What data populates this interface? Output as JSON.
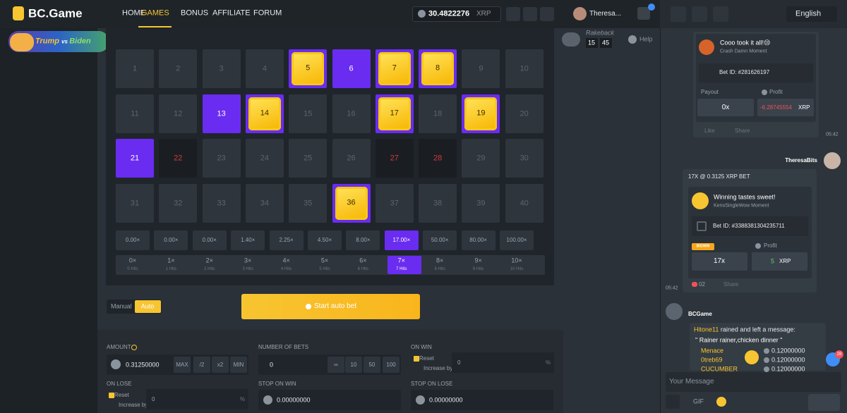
{
  "nav": {
    "logo": "BC.Game",
    "items": [
      "HOME",
      "GAMES",
      "BONUS",
      "AFFILIATE",
      "FORUM"
    ],
    "active": 1,
    "balance": "30.4822276",
    "currency": "XRP",
    "user": "Theresa..."
  },
  "promo": {
    "a": "Trump",
    "vs": "vs",
    "b": "Biden"
  },
  "rakeback": {
    "label": "Rakeback",
    "left": "15",
    "right": "45",
    "help": "Help"
  },
  "keno": {
    "tiles": [
      {
        "label": "1",
        "state": "idle"
      },
      {
        "label": "2",
        "state": "idle"
      },
      {
        "label": "3",
        "state": "idle"
      },
      {
        "label": "4",
        "state": "idle"
      },
      {
        "label": "5",
        "state": "gem"
      },
      {
        "label": "6",
        "state": "picked"
      },
      {
        "label": "7",
        "state": "gem"
      },
      {
        "label": "8",
        "state": "gem"
      },
      {
        "label": "9",
        "state": "idle"
      },
      {
        "label": "10",
        "state": "idle"
      },
      {
        "label": "11",
        "state": "idle"
      },
      {
        "label": "12",
        "state": "idle"
      },
      {
        "label": "13",
        "state": "picked"
      },
      {
        "label": "14",
        "state": "gem"
      },
      {
        "label": "15",
        "state": "idle"
      },
      {
        "label": "16",
        "state": "idle"
      },
      {
        "label": "17",
        "state": "gem"
      },
      {
        "label": "18",
        "state": "idle"
      },
      {
        "label": "19",
        "state": "gem"
      },
      {
        "label": "20",
        "state": "idle"
      },
      {
        "label": "21",
        "state": "picked"
      },
      {
        "label": "22",
        "state": "miss"
      },
      {
        "label": "23",
        "state": "idle"
      },
      {
        "label": "24",
        "state": "idle"
      },
      {
        "label": "25",
        "state": "idle"
      },
      {
        "label": "26",
        "state": "idle"
      },
      {
        "label": "27",
        "state": "miss"
      },
      {
        "label": "28",
        "state": "miss"
      },
      {
        "label": "29",
        "state": "idle"
      },
      {
        "label": "30",
        "state": "idle"
      },
      {
        "label": "31",
        "state": "idle"
      },
      {
        "label": "32",
        "state": "idle"
      },
      {
        "label": "33",
        "state": "idle"
      },
      {
        "label": "34",
        "state": "idle"
      },
      {
        "label": "35",
        "state": "idle"
      },
      {
        "label": "36",
        "state": "gem"
      },
      {
        "label": "37",
        "state": "idle"
      },
      {
        "label": "38",
        "state": "idle"
      },
      {
        "label": "39",
        "state": "idle"
      },
      {
        "label": "40",
        "state": "idle"
      }
    ],
    "payouts": [
      "0.00×",
      "0.00×",
      "0.00×",
      "1.40×",
      "2.25×",
      "4.50×",
      "8.00×",
      "17.00×",
      "50.00×",
      "80.00×",
      "100.00×"
    ],
    "payout_active": 7,
    "hits": [
      {
        "mult": "0×",
        "label": "0 Hits"
      },
      {
        "mult": "1×",
        "label": "1 Hits"
      },
      {
        "mult": "2×",
        "label": "2 Hits"
      },
      {
        "mult": "3×",
        "label": "3 Hits"
      },
      {
        "mult": "4×",
        "label": "4 Hits"
      },
      {
        "mult": "5×",
        "label": "5 Hits"
      },
      {
        "mult": "6×",
        "label": "6 Hits"
      },
      {
        "mult": "7×",
        "label": "7 Hits"
      },
      {
        "mult": "8×",
        "label": "8 Hits"
      },
      {
        "mult": "9×",
        "label": "9 Hits"
      },
      {
        "mult": "10×",
        "label": "10 Hits"
      }
    ],
    "hits_active": 7
  },
  "controls": {
    "manual": "Manual",
    "auto": "Auto",
    "start": "Start auto bet"
  },
  "form": {
    "amount": {
      "label": "AMOUNT",
      "value": "0.31250000",
      "buttons": [
        "MAX",
        "/2",
        "x2",
        "MIN"
      ]
    },
    "bets": {
      "label": "NUMBER OF BETS",
      "value": "0",
      "buttons": [
        "∞",
        "10",
        "50",
        "100"
      ]
    },
    "on_win": {
      "label": "ON WIN",
      "reset": "Reset",
      "increase": "Increase by",
      "value": "0",
      "unit": "%"
    },
    "on_lose": {
      "label": "ON LOSE",
      "reset": "Reset",
      "increase": "Increase by",
      "value": "0",
      "unit": "%"
    },
    "stop_win": {
      "label": "STOP ON WIN",
      "value": "0.00000000"
    },
    "stop_lose": {
      "label": "STOP ON LOSE",
      "value": "0.00000000"
    }
  },
  "chat": {
    "language": "English",
    "msg1": {
      "title": "Cooo took it all!😢",
      "subtitle": "Crash Damn Moment",
      "bet_id": "Bet ID: #281626197",
      "payout_label": "Payout",
      "profit_label": "Profit",
      "payout": "0x",
      "profit": "-6.28745554",
      "currency": "XRP",
      "like": "Like",
      "share": "Share",
      "time": "05:42"
    },
    "msg2": {
      "user": "TheresaBits",
      "header": "17X @ 0.3125 XRP BET",
      "title": "Winning tastes sweet!",
      "subtitle": "KenoSingleWow Moment",
      "bet_id": "Bet ID: #3388381304235711",
      "badge": "BIGWIN",
      "profit_label": "Profit",
      "payout": "17x",
      "profit": "5",
      "currency": "XRP",
      "likes": "02",
      "share": "Share",
      "time": "05:42"
    },
    "msg3": {
      "user": "BCGame",
      "rainer": "Hitone11",
      "text": " rained and left a message:",
      "quote": "\" Rainer rainer,chicken dinner \"",
      "rows": [
        {
          "name": "Menace",
          "amount": "0.12000000"
        },
        {
          "name": "0treb69",
          "amount": "0.12000000"
        },
        {
          "name": "CUCUMBER",
          "amount": "0.12000000"
        }
      ]
    },
    "mentions": "28",
    "placeholder": "Your Message",
    "gif": "GIF"
  }
}
